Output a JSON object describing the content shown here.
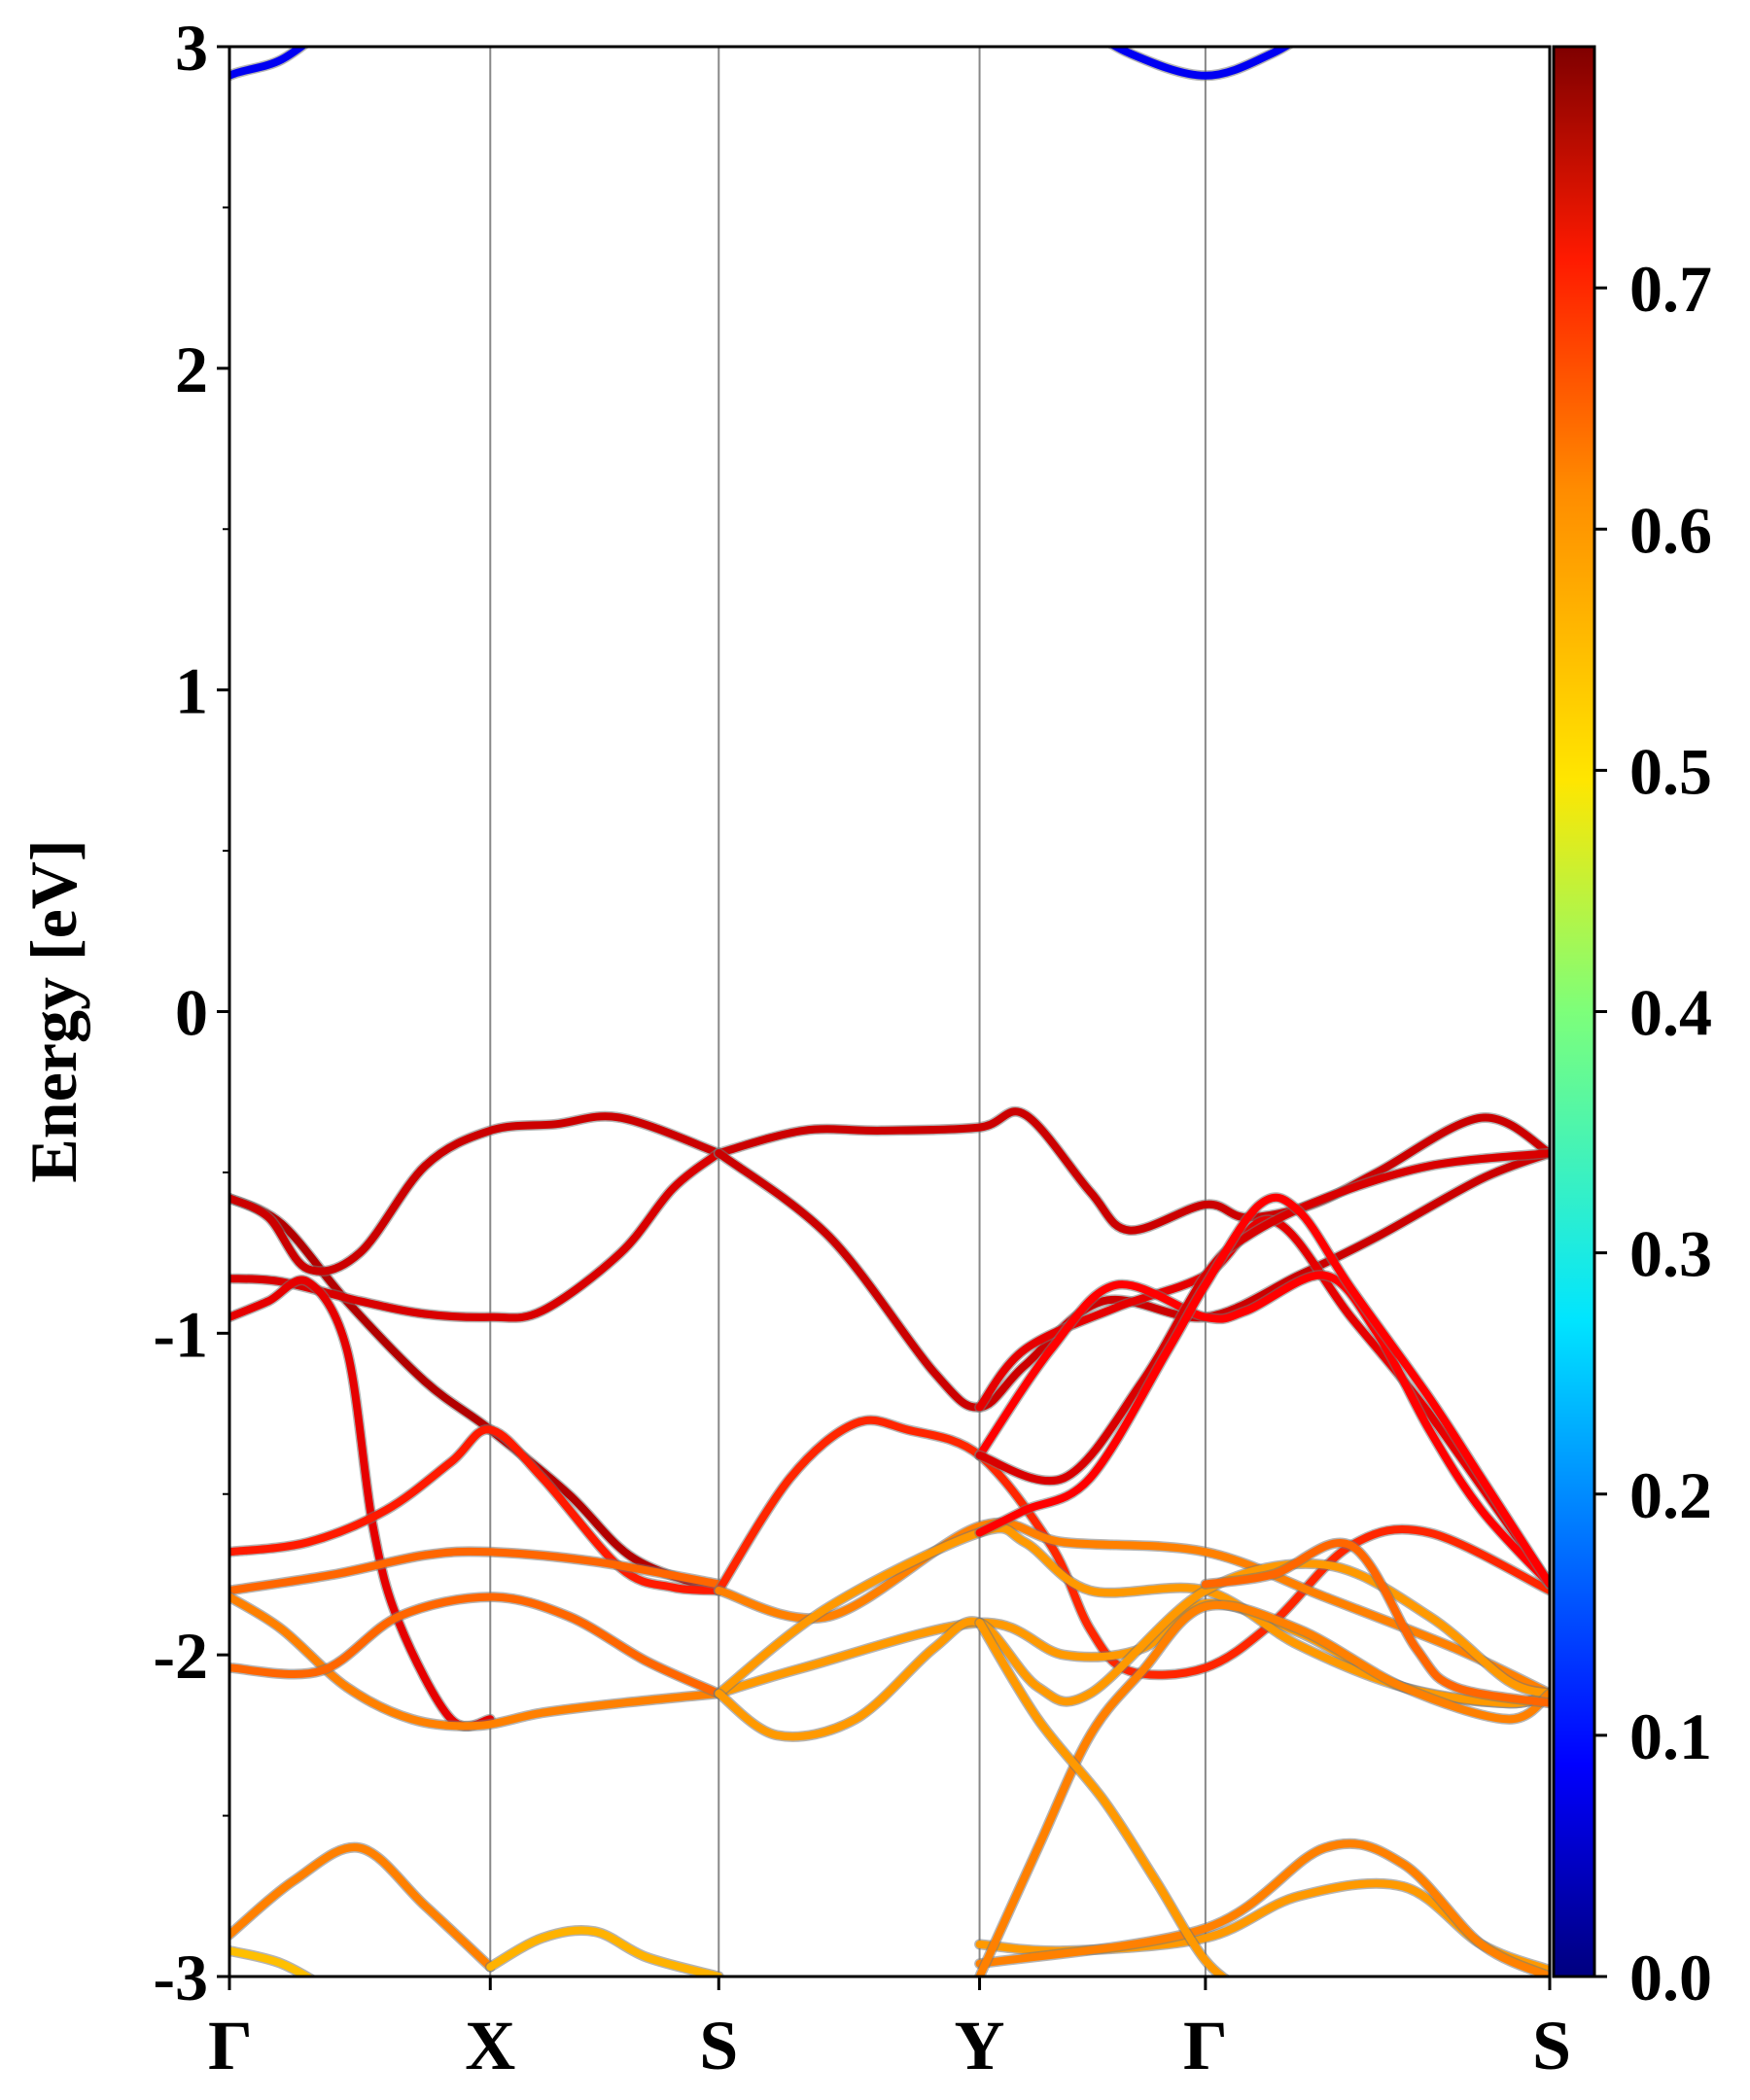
{
  "chart_data": {
    "type": "line",
    "title": "",
    "xlabel": "",
    "ylabel": "Energy [eV]",
    "ylim": [
      -3,
      3
    ],
    "yticks": [
      -3,
      -2,
      -1,
      0,
      1,
      2,
      3
    ],
    "ytick_labels": [
      "-3",
      "-2",
      "-1",
      "0",
      "1",
      "2",
      "3"
    ],
    "kpath": {
      "positions": [
        0,
        1,
        1.876,
        2.876,
        3.742,
        5.062
      ],
      "labels": [
        "Γ",
        "X",
        "S",
        "Y",
        "Γ",
        "S"
      ]
    },
    "grid": "vertical lines at high-symmetry points",
    "colormap": "jet",
    "colorbar": {
      "range": [
        0.0,
        0.8
      ],
      "ticks": [
        0.0,
        0.1,
        0.2,
        0.3,
        0.4,
        0.5,
        0.6,
        0.7
      ],
      "tick_labels": [
        "0.0",
        "0.1",
        "0.2",
        "0.3",
        "0.4",
        "0.5",
        "0.6",
        "0.7"
      ]
    },
    "series": [
      {
        "weight": 0.09,
        "points": [
          [
            -0.1,
            2.84
          ],
          [
            0,
            2.91
          ],
          [
            0.2,
            2.96
          ],
          [
            0.4,
            3.08
          ]
        ]
      },
      {
        "weight": 0.09,
        "points": [
          [
            3.25,
            3.08
          ],
          [
            3.45,
            2.98
          ],
          [
            3.742,
            2.91
          ],
          [
            4.0,
            2.98
          ],
          [
            4.2,
            3.08
          ]
        ]
      },
      {
        "weight": 0.76,
        "points": [
          [
            0,
            -0.58
          ],
          [
            0.2,
            -0.66
          ],
          [
            0.45,
            -0.9
          ],
          [
            0.75,
            -1.15
          ],
          [
            1,
            -1.3
          ],
          [
            1.3,
            -1.5
          ],
          [
            1.55,
            -1.7
          ],
          [
            1.876,
            -1.8
          ]
        ]
      },
      {
        "weight": 0.74,
        "points": [
          [
            0,
            -0.58
          ],
          [
            0.15,
            -0.64
          ],
          [
            0.3,
            -0.8
          ],
          [
            0.5,
            -0.75
          ],
          [
            0.75,
            -0.48
          ],
          [
            1,
            -0.37
          ],
          [
            1.25,
            -0.35
          ],
          [
            1.5,
            -0.33
          ],
          [
            1.876,
            -0.44
          ]
        ]
      },
      {
        "weight": 0.73,
        "points": [
          [
            0,
            -0.83
          ],
          [
            0.2,
            -0.84
          ],
          [
            0.5,
            -0.9
          ],
          [
            0.75,
            -0.94
          ],
          [
            1,
            -0.95
          ],
          [
            1.2,
            -0.93
          ],
          [
            1.5,
            -0.75
          ],
          [
            1.7,
            -0.55
          ],
          [
            1.876,
            -0.44
          ]
        ]
      },
      {
        "weight": 0.72,
        "points": [
          [
            0,
            -0.95
          ],
          [
            0.15,
            -0.9
          ],
          [
            0.3,
            -0.84
          ],
          [
            0.45,
            -1.05
          ],
          [
            0.55,
            -1.6
          ],
          [
            0.65,
            -1.9
          ],
          [
            0.85,
            -2.2
          ],
          [
            1,
            -2.2
          ]
        ]
      },
      {
        "weight": 0.68,
        "points": [
          [
            0,
            -1.68
          ],
          [
            0.3,
            -1.65
          ],
          [
            0.6,
            -1.55
          ],
          [
            0.85,
            -1.4
          ],
          [
            1,
            -1.3
          ],
          [
            1.2,
            -1.45
          ],
          [
            1.5,
            -1.73
          ],
          [
            1.7,
            -1.79
          ],
          [
            1.876,
            -1.8
          ]
        ]
      },
      {
        "weight": 0.62,
        "points": [
          [
            0,
            -1.8
          ],
          [
            0.4,
            -1.75
          ],
          [
            0.75,
            -1.69
          ],
          [
            1,
            -1.68
          ],
          [
            1.4,
            -1.71
          ],
          [
            1.876,
            -1.78
          ]
        ]
      },
      {
        "weight": 0.6,
        "points": [
          [
            0,
            -1.82
          ],
          [
            0.2,
            -1.92
          ],
          [
            0.45,
            -2.1
          ],
          [
            0.7,
            -2.2
          ],
          [
            0.95,
            -2.22
          ],
          [
            1.2,
            -2.18
          ],
          [
            1.5,
            -2.15
          ],
          [
            1.876,
            -2.12
          ]
        ]
      },
      {
        "weight": 0.62,
        "points": [
          [
            0,
            -2.04
          ],
          [
            0.35,
            -2.05
          ],
          [
            0.65,
            -1.88
          ],
          [
            1,
            -1.82
          ],
          [
            1.3,
            -1.88
          ],
          [
            1.6,
            -2.02
          ],
          [
            1.876,
            -2.12
          ]
        ]
      },
      {
        "weight": 0.6,
        "points": [
          [
            0,
            -2.87
          ],
          [
            0.25,
            -2.7
          ],
          [
            0.5,
            -2.6
          ],
          [
            0.75,
            -2.78
          ],
          [
            1,
            -2.97
          ]
        ]
      },
      {
        "weight": 0.55,
        "points": [
          [
            0,
            -2.92
          ],
          [
            0.2,
            -2.96
          ],
          [
            0.4,
            -3.05
          ]
        ]
      },
      {
        "weight": 0.56,
        "points": [
          [
            1,
            -2.97
          ],
          [
            1.2,
            -2.88
          ],
          [
            1.4,
            -2.86
          ],
          [
            1.6,
            -2.94
          ],
          [
            1.876,
            -3.0
          ]
        ]
      },
      {
        "weight": 0.74,
        "points": [
          [
            1.876,
            -0.44
          ],
          [
            2.2,
            -0.37
          ],
          [
            2.5,
            -0.37
          ],
          [
            2.876,
            -0.36
          ],
          [
            3.05,
            -0.32
          ],
          [
            3.3,
            -0.56
          ],
          [
            3.45,
            -0.68
          ],
          [
            3.742,
            -0.6
          ],
          [
            3.9,
            -0.64
          ],
          [
            4.15,
            -0.6
          ],
          [
            4.4,
            -0.5
          ],
          [
            4.8,
            -0.33
          ],
          [
            5.062,
            -0.44
          ]
        ]
      },
      {
        "weight": 0.74,
        "points": [
          [
            1.876,
            -0.44
          ],
          [
            2.3,
            -0.7
          ],
          [
            2.7,
            -1.12
          ],
          [
            2.876,
            -1.23
          ],
          [
            3.05,
            -1.1
          ],
          [
            3.35,
            -0.9
          ],
          [
            3.742,
            -0.95
          ],
          [
            4.1,
            -0.82
          ],
          [
            4.4,
            -0.7
          ],
          [
            4.8,
            -0.52
          ],
          [
            5.062,
            -0.44
          ]
        ]
      },
      {
        "weight": 0.67,
        "points": [
          [
            1.876,
            -1.8
          ],
          [
            2.15,
            -1.45
          ],
          [
            2.4,
            -1.28
          ],
          [
            2.6,
            -1.3
          ],
          [
            2.876,
            -1.38
          ],
          [
            3.15,
            -1.66
          ],
          [
            3.3,
            -1.92
          ],
          [
            3.45,
            -2.05
          ],
          [
            3.742,
            -2.04
          ],
          [
            4.0,
            -1.9
          ],
          [
            4.3,
            -1.66
          ],
          [
            4.6,
            -1.62
          ],
          [
            5.062,
            -1.8
          ]
        ]
      },
      {
        "weight": 0.6,
        "points": [
          [
            1.876,
            -1.8
          ],
          [
            2.3,
            -1.88
          ],
          [
            2.876,
            -1.6
          ],
          [
            3.2,
            -1.65
          ],
          [
            3.742,
            -1.68
          ],
          [
            4.2,
            -1.82
          ],
          [
            4.7,
            -1.98
          ],
          [
            5.062,
            -2.12
          ]
        ]
      },
      {
        "weight": 0.58,
        "points": [
          [
            1.876,
            -2.12
          ],
          [
            2.2,
            -2.04
          ],
          [
            2.876,
            -1.9
          ],
          [
            3.2,
            -2.0
          ],
          [
            3.5,
            -1.98
          ],
          [
            3.742,
            -1.84
          ],
          [
            4.1,
            -1.93
          ],
          [
            4.5,
            -2.1
          ],
          [
            4.9,
            -2.15
          ],
          [
            5.062,
            -2.12
          ]
        ]
      },
      {
        "weight": 0.58,
        "points": [
          [
            1.876,
            -2.12
          ],
          [
            2.3,
            -1.85
          ],
          [
            2.876,
            -1.62
          ],
          [
            3.05,
            -1.65
          ],
          [
            3.3,
            -1.8
          ],
          [
            3.742,
            -1.8
          ],
          [
            4.1,
            -1.97
          ],
          [
            4.5,
            -2.1
          ],
          [
            4.9,
            -2.15
          ],
          [
            5.062,
            -2.12
          ]
        ]
      },
      {
        "weight": 0.58,
        "points": [
          [
            1.876,
            -2.12
          ],
          [
            2.1,
            -2.25
          ],
          [
            2.4,
            -2.2
          ],
          [
            2.7,
            -1.98
          ],
          [
            2.876,
            -1.9
          ],
          [
            3.1,
            -2.1
          ],
          [
            3.3,
            -2.12
          ],
          [
            3.742,
            -1.8
          ],
          [
            4.2,
            -1.72
          ],
          [
            4.6,
            -1.88
          ],
          [
            4.9,
            -2.08
          ],
          [
            5.062,
            -2.12
          ]
        ]
      },
      {
        "weight": 0.58,
        "points": [
          [
            2.876,
            -2.9
          ],
          [
            3.2,
            -2.92
          ],
          [
            3.742,
            -2.88
          ],
          [
            4.1,
            -2.75
          ],
          [
            4.5,
            -2.72
          ],
          [
            4.8,
            -2.9
          ],
          [
            5.062,
            -2.98
          ]
        ]
      },
      {
        "weight": 0.6,
        "points": [
          [
            2.876,
            -2.96
          ],
          [
            3.742,
            -2.85
          ],
          [
            4.2,
            -2.6
          ],
          [
            4.5,
            -2.65
          ],
          [
            4.8,
            -2.9
          ],
          [
            5.062,
            -3.0
          ]
        ]
      },
      {
        "weight": 0.72,
        "points": [
          [
            2.876,
            -1.23
          ],
          [
            3.05,
            -1.05
          ],
          [
            3.4,
            -0.92
          ],
          [
            3.742,
            -0.82
          ],
          [
            4.0,
            -0.65
          ],
          [
            4.3,
            -0.95
          ],
          [
            4.6,
            -1.25
          ],
          [
            5.062,
            -1.78
          ]
        ]
      },
      {
        "weight": 0.7,
        "points": [
          [
            2.876,
            -1.38
          ],
          [
            3.15,
            -1.05
          ],
          [
            3.4,
            -0.85
          ],
          [
            3.742,
            -0.95
          ],
          [
            3.9,
            -0.93
          ],
          [
            4.2,
            -0.82
          ],
          [
            4.4,
            -1.0
          ],
          [
            4.6,
            -1.3
          ],
          [
            4.8,
            -1.55
          ],
          [
            5.062,
            -1.78
          ]
        ]
      },
      {
        "weight": 0.73,
        "points": [
          [
            2.876,
            -1.38
          ],
          [
            3.2,
            -1.45
          ],
          [
            3.5,
            -1.15
          ],
          [
            3.742,
            -0.82
          ],
          [
            3.9,
            -0.7
          ],
          [
            4.2,
            -0.58
          ],
          [
            4.6,
            -0.48
          ],
          [
            5.062,
            -0.44
          ]
        ]
      },
      {
        "weight": 0.7,
        "points": [
          [
            2.876,
            -1.62
          ],
          [
            3.05,
            -1.55
          ],
          [
            3.3,
            -1.45
          ],
          [
            3.6,
            -1.05
          ],
          [
            3.742,
            -0.85
          ],
          [
            3.95,
            -0.6
          ],
          [
            4.1,
            -0.62
          ],
          [
            4.3,
            -0.86
          ],
          [
            4.6,
            -1.2
          ],
          [
            4.8,
            -1.45
          ],
          [
            5.062,
            -1.78
          ]
        ]
      },
      {
        "weight": 0.6,
        "points": [
          [
            2.876,
            -3.0
          ],
          [
            3.1,
            -2.6
          ],
          [
            3.3,
            -2.25
          ],
          [
            3.5,
            -2.05
          ],
          [
            3.742,
            -1.85
          ],
          [
            4.1,
            -1.92
          ],
          [
            4.5,
            -2.1
          ],
          [
            4.9,
            -2.2
          ],
          [
            5.062,
            -2.12
          ]
        ]
      },
      {
        "weight": 0.58,
        "points": [
          [
            2.876,
            -1.9
          ],
          [
            3.1,
            -2.2
          ],
          [
            3.35,
            -2.45
          ],
          [
            3.55,
            -2.7
          ],
          [
            3.742,
            -2.95
          ],
          [
            3.9,
            -3.05
          ]
        ]
      },
      {
        "weight": 0.62,
        "points": [
          [
            3.742,
            -1.78
          ],
          [
            4.0,
            -1.75
          ],
          [
            4.3,
            -1.66
          ],
          [
            4.55,
            -1.98
          ],
          [
            4.7,
            -2.1
          ],
          [
            5.062,
            -2.15
          ]
        ]
      }
    ]
  }
}
